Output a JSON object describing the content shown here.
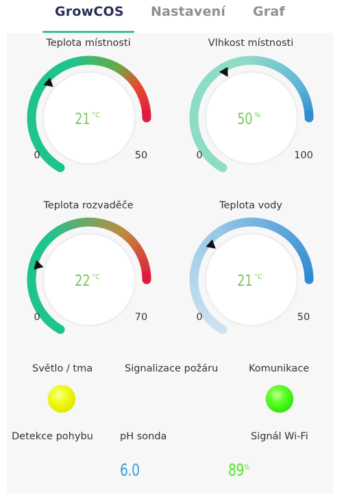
{
  "tabs": [
    {
      "label": "GrowCOS",
      "active": true
    },
    {
      "label": "Nastavení",
      "active": false
    },
    {
      "label": "Graf",
      "active": false
    }
  ],
  "gauges": [
    {
      "title": "Teplota místnosti",
      "value": "21",
      "unit": "°C",
      "min": "0",
      "max": "50",
      "level": 0.42,
      "value_color": "#79c65a"
    },
    {
      "title": "Vlhkost místnosti",
      "value": "50",
      "unit": "%",
      "min": "0",
      "max": "100",
      "level": 0.5,
      "value_color": "#79c65a"
    },
    {
      "title": "Teplota rozvaděče",
      "value": "22",
      "unit": "°C",
      "min": "0",
      "max": "70",
      "level": 0.314,
      "value_color": "#79c65a"
    },
    {
      "title": "Teplota vody",
      "value": "21",
      "unit": "°C",
      "min": "0",
      "max": "50",
      "level": 0.42,
      "value_color": "#79c65a"
    }
  ],
  "indicators": {
    "light": {
      "label": "Světlo / tma",
      "color": "#eef500"
    },
    "fire": {
      "label": "Signalizace požáru"
    },
    "comm": {
      "label": "Komunikace",
      "color": "#3bf20e"
    }
  },
  "readouts": {
    "motion": {
      "label": "Detekce pohybu"
    },
    "ph": {
      "label": "pH sonda",
      "value": "6.0",
      "color": "#3a9ad4"
    },
    "wifi": {
      "label": "Signál Wi-Fi",
      "value": "89",
      "unit": "%",
      "color": "#55e22b"
    }
  },
  "colors": {
    "accent": "#33c59a",
    "green": "#1fc38d",
    "red": "#e2173f",
    "mint": "#8fdcc6",
    "blue": "#2f8ad0",
    "light_blue": "#cfe3f1"
  }
}
